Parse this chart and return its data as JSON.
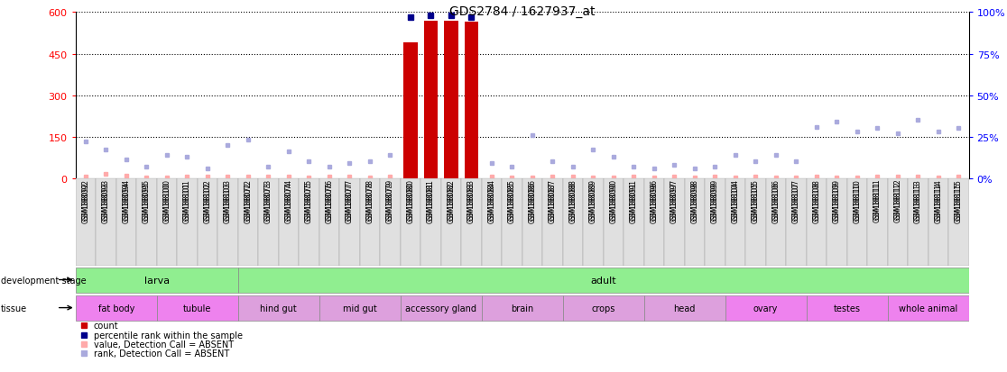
{
  "title": "GDS2784 / 1627937_at",
  "samples": [
    "GSM188092",
    "GSM188093",
    "GSM188094",
    "GSM188095",
    "GSM188100",
    "GSM188101",
    "GSM188102",
    "GSM188103",
    "GSM188072",
    "GSM188073",
    "GSM188074",
    "GSM188075",
    "GSM188076",
    "GSM188077",
    "GSM188078",
    "GSM188079",
    "GSM188080",
    "GSM188081",
    "GSM188082",
    "GSM188083",
    "GSM188084",
    "GSM188085",
    "GSM188086",
    "GSM188087",
    "GSM188088",
    "GSM188089",
    "GSM188090",
    "GSM188091",
    "GSM188096",
    "GSM188097",
    "GSM188098",
    "GSM188099",
    "GSM188104",
    "GSM188105",
    "GSM188106",
    "GSM188107",
    "GSM188108",
    "GSM188109",
    "GSM188110",
    "GSM188111",
    "GSM188112",
    "GSM188113",
    "GSM188114",
    "GSM188115"
  ],
  "counts": [
    0,
    0,
    0,
    0,
    0,
    0,
    0,
    0,
    0,
    0,
    0,
    0,
    0,
    0,
    0,
    0,
    490,
    570,
    570,
    565,
    0,
    0,
    0,
    0,
    0,
    0,
    0,
    0,
    0,
    0,
    0,
    0,
    0,
    0,
    0,
    0,
    0,
    0,
    0,
    0,
    0,
    0,
    0,
    0
  ],
  "ranks_present": [
    null,
    null,
    null,
    null,
    null,
    null,
    null,
    null,
    null,
    null,
    null,
    null,
    null,
    null,
    null,
    null,
    97,
    98,
    98,
    97,
    null,
    null,
    null,
    null,
    null,
    null,
    null,
    null,
    null,
    null,
    null,
    null,
    null,
    null,
    null,
    null,
    null,
    null,
    null,
    null,
    null,
    null,
    null,
    null
  ],
  "absent_values": [
    4,
    14,
    8,
    3,
    3,
    7,
    5,
    6,
    5,
    4,
    6,
    3,
    4,
    4,
    3,
    4,
    null,
    null,
    null,
    null,
    4,
    3,
    3,
    4,
    5,
    3,
    3,
    4,
    3,
    4,
    3,
    5,
    3,
    5,
    3,
    3,
    4,
    3,
    3,
    5,
    5,
    4,
    3,
    4
  ],
  "absent_ranks": [
    22,
    17,
    11,
    7,
    14,
    13,
    6,
    20,
    23,
    7,
    16,
    10,
    7,
    9,
    10,
    14,
    null,
    null,
    null,
    null,
    9,
    7,
    26,
    10,
    7,
    17,
    13,
    7,
    6,
    8,
    6,
    7,
    14,
    10,
    14,
    10,
    31,
    34,
    28,
    30,
    27,
    35,
    28,
    30
  ],
  "dev_stages": [
    {
      "label": "larva",
      "start": 0,
      "end": 7,
      "color": "#90ee90"
    },
    {
      "label": "adult",
      "start": 8,
      "end": 43,
      "color": "#90ee90"
    }
  ],
  "tissues": [
    {
      "label": "fat body",
      "start": 0,
      "end": 3,
      "color": "#ee82ee"
    },
    {
      "label": "tubule",
      "start": 4,
      "end": 7,
      "color": "#ee82ee"
    },
    {
      "label": "hind gut",
      "start": 8,
      "end": 11,
      "color": "#dda0dd"
    },
    {
      "label": "mid gut",
      "start": 12,
      "end": 15,
      "color": "#dda0dd"
    },
    {
      "label": "accessory gland",
      "start": 16,
      "end": 19,
      "color": "#dda0dd"
    },
    {
      "label": "brain",
      "start": 20,
      "end": 23,
      "color": "#dda0dd"
    },
    {
      "label": "crops",
      "start": 24,
      "end": 27,
      "color": "#dda0dd"
    },
    {
      "label": "head",
      "start": 28,
      "end": 31,
      "color": "#dda0dd"
    },
    {
      "label": "ovary",
      "start": 32,
      "end": 35,
      "color": "#ee82ee"
    },
    {
      "label": "testes",
      "start": 36,
      "end": 39,
      "color": "#ee82ee"
    },
    {
      "label": "whole animal",
      "start": 40,
      "end": 43,
      "color": "#ee82ee"
    }
  ],
  "ylim_left": [
    0,
    600
  ],
  "ylim_right": [
    0,
    100
  ],
  "yticks_left": [
    0,
    150,
    300,
    450,
    600
  ],
  "yticks_right": [
    0,
    25,
    50,
    75,
    100
  ],
  "ytick_labels_right": [
    "0%",
    "25%",
    "50%",
    "75%",
    "100%"
  ],
  "bar_color": "#cc0000",
  "rank_color_present": "#00008b",
  "absent_value_color": "#ffaaaa",
  "absent_rank_color": "#aaaadd",
  "bg_color": "#ffffff",
  "title_fontsize": 10,
  "dev_stage_label_color": "#006600",
  "label_left_color": "#006600"
}
